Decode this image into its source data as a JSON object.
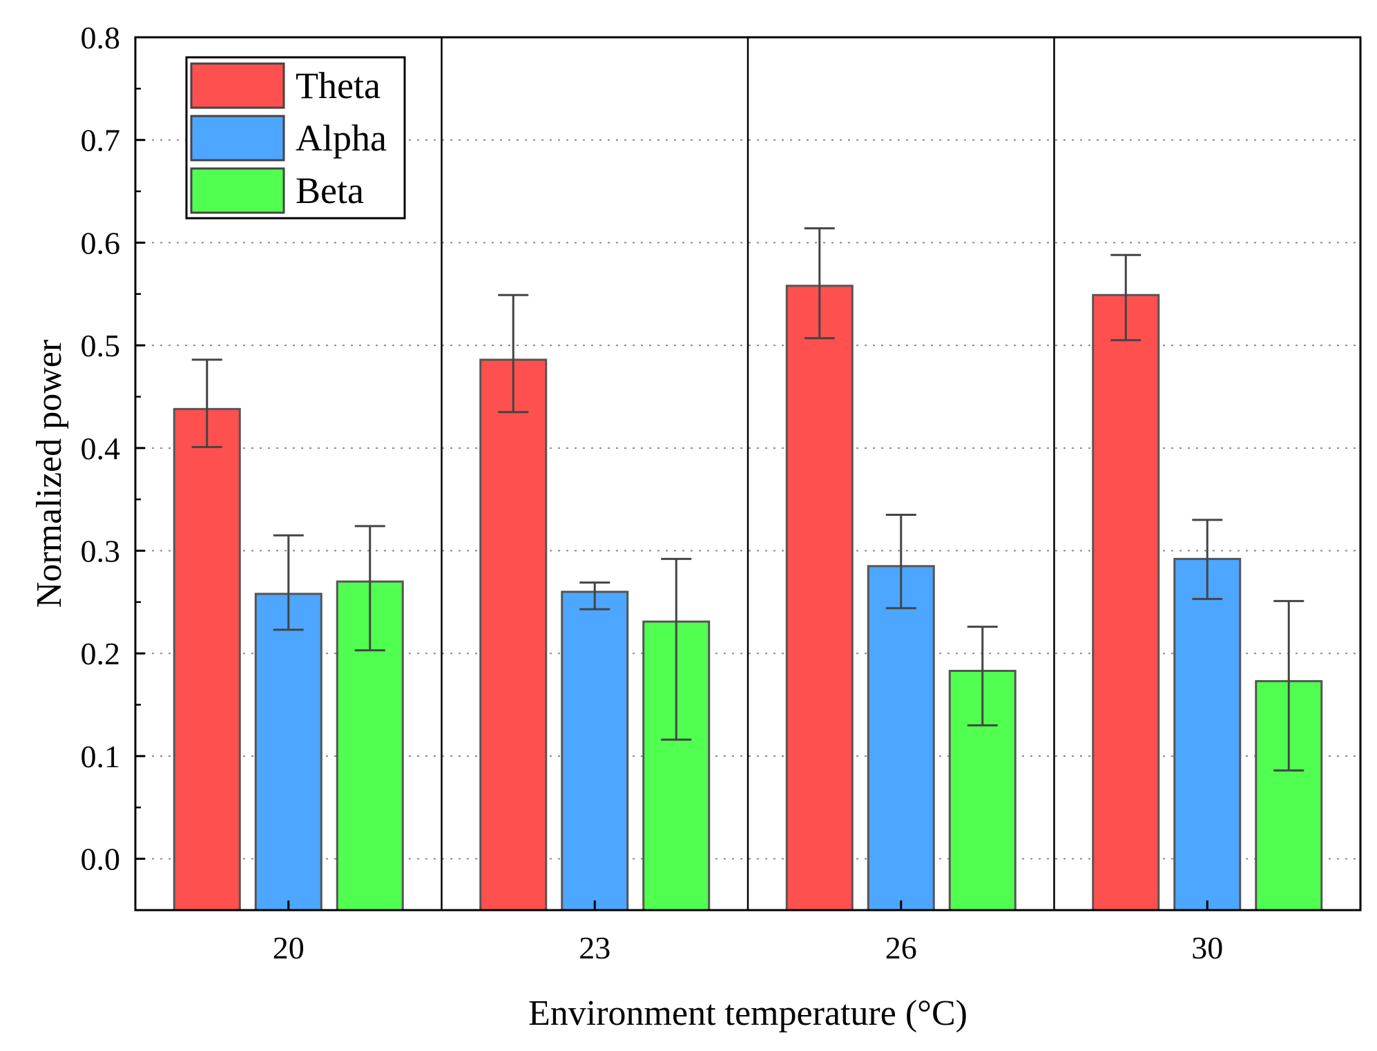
{
  "chart_data": {
    "type": "bar",
    "title": "",
    "xlabel": "Environment temperature (°C)",
    "ylabel": "Normalized power",
    "categories": [
      "20",
      "23",
      "26",
      "30"
    ],
    "ylim": [
      -0.05,
      0.8
    ],
    "yticks": [
      0.0,
      0.1,
      0.2,
      0.3,
      0.4,
      0.5,
      0.6,
      0.7,
      0.8
    ],
    "ytick_labels": [
      "0.0",
      "0.1",
      "0.2",
      "0.3",
      "0.4",
      "0.5",
      "0.6",
      "0.7",
      "0.8"
    ],
    "grid": "horizontal dotted",
    "category_separators": true,
    "legend_position": "top-left",
    "series": [
      {
        "name": "Theta",
        "color": "#ff5050",
        "values": [
          0.438,
          0.486,
          0.558,
          0.549
        ],
        "error_low": [
          0.401,
          0.435,
          0.507,
          0.505
        ],
        "error_high": [
          0.486,
          0.549,
          0.614,
          0.588
        ]
      },
      {
        "name": "Alpha",
        "color": "#4da6ff",
        "values": [
          0.258,
          0.26,
          0.285,
          0.292
        ],
        "error_low": [
          0.223,
          0.243,
          0.244,
          0.253
        ],
        "error_high": [
          0.315,
          0.269,
          0.335,
          0.33
        ]
      },
      {
        "name": "Beta",
        "color": "#50ff50",
        "values": [
          0.27,
          0.231,
          0.183,
          0.173
        ],
        "error_low": [
          0.203,
          0.116,
          0.13,
          0.086
        ],
        "error_high": [
          0.324,
          0.292,
          0.226,
          0.251
        ]
      }
    ]
  }
}
